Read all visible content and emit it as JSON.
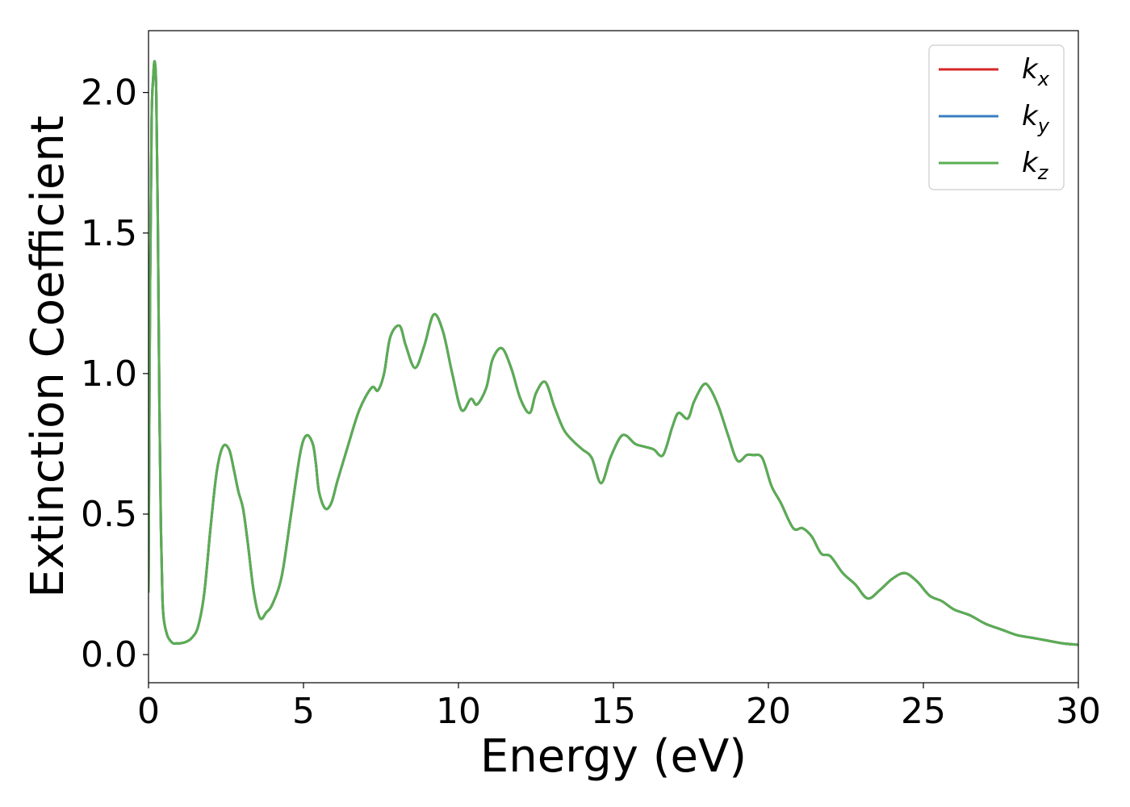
{
  "chart_data": {
    "type": "line",
    "title": "",
    "xlabel": "Energy (eV)",
    "ylabel": "Extinction Coefficient",
    "xlim": [
      0,
      30
    ],
    "ylim": [
      -0.1,
      2.22
    ],
    "xticks": [
      0,
      5,
      10,
      15,
      20,
      25,
      30
    ],
    "xtick_labels": [
      "0",
      "5",
      "10",
      "15",
      "20",
      "25",
      "30"
    ],
    "yticks": [
      0.0,
      0.5,
      1.0,
      1.5,
      2.0
    ],
    "ytick_labels": [
      "0.0",
      "0.5",
      "1.0",
      "1.5",
      "2.0"
    ],
    "grid": false,
    "legend_position": "top-right",
    "x": [
      0,
      0.05,
      0.1,
      0.15,
      0.2,
      0.25,
      0.3,
      0.35,
      0.4,
      0.45,
      0.5,
      0.6,
      0.7,
      0.8,
      0.9,
      1.0,
      1.2,
      1.4,
      1.6,
      1.8,
      2.0,
      2.2,
      2.4,
      2.6,
      2.75,
      2.9,
      3.05,
      3.2,
      3.4,
      3.6,
      3.8,
      4.0,
      4.3,
      4.6,
      4.9,
      5.1,
      5.3,
      5.4,
      5.5,
      5.7,
      5.9,
      6.1,
      6.4,
      6.8,
      7.2,
      7.4,
      7.6,
      7.8,
      8.1,
      8.3,
      8.6,
      8.9,
      9.2,
      9.5,
      9.8,
      10.1,
      10.4,
      10.6,
      10.9,
      11.1,
      11.4,
      11.7,
      12.0,
      12.3,
      12.5,
      12.8,
      13.1,
      13.4,
      13.7,
      14.0,
      14.3,
      14.6,
      14.9,
      15.2,
      15.4,
      15.7,
      16.0,
      16.3,
      16.6,
      16.9,
      17.1,
      17.4,
      17.6,
      17.9,
      18.1,
      18.4,
      18.7,
      19.0,
      19.3,
      19.5,
      19.8,
      20.1,
      20.4,
      20.8,
      21.1,
      21.4,
      21.7,
      22.0,
      22.4,
      22.8,
      23.2,
      23.6,
      24.0,
      24.4,
      24.8,
      25.2,
      25.6,
      26.0,
      26.5,
      27.0,
      27.5,
      28.0,
      28.5,
      29.0,
      29.5,
      30.0
    ],
    "series": [
      {
        "name": "k_x",
        "color": "#d62728"
      },
      {
        "name": "k_y",
        "color": "#3a7fc0"
      },
      {
        "name": "k_z",
        "color": "#5aad52"
      }
    ],
    "y": [
      0.22,
      1.3,
      1.9,
      2.05,
      2.11,
      2.0,
      1.55,
      0.9,
      0.45,
      0.2,
      0.12,
      0.07,
      0.05,
      0.04,
      0.04,
      0.04,
      0.045,
      0.06,
      0.1,
      0.22,
      0.45,
      0.65,
      0.74,
      0.73,
      0.66,
      0.58,
      0.52,
      0.4,
      0.22,
      0.13,
      0.15,
      0.18,
      0.28,
      0.5,
      0.72,
      0.78,
      0.75,
      0.68,
      0.58,
      0.52,
      0.54,
      0.62,
      0.73,
      0.87,
      0.95,
      0.94,
      1.0,
      1.13,
      1.17,
      1.1,
      1.02,
      1.1,
      1.21,
      1.15,
      1.0,
      0.87,
      0.91,
      0.89,
      0.95,
      1.05,
      1.09,
      1.02,
      0.91,
      0.86,
      0.93,
      0.97,
      0.88,
      0.8,
      0.76,
      0.73,
      0.7,
      0.61,
      0.7,
      0.77,
      0.78,
      0.75,
      0.74,
      0.73,
      0.71,
      0.81,
      0.86,
      0.84,
      0.9,
      0.96,
      0.95,
      0.88,
      0.78,
      0.69,
      0.71,
      0.71,
      0.7,
      0.6,
      0.54,
      0.45,
      0.45,
      0.42,
      0.36,
      0.35,
      0.29,
      0.25,
      0.2,
      0.23,
      0.27,
      0.29,
      0.26,
      0.21,
      0.19,
      0.16,
      0.14,
      0.11,
      0.09,
      0.07,
      0.06,
      0.05,
      0.04,
      0.035
    ]
  }
}
